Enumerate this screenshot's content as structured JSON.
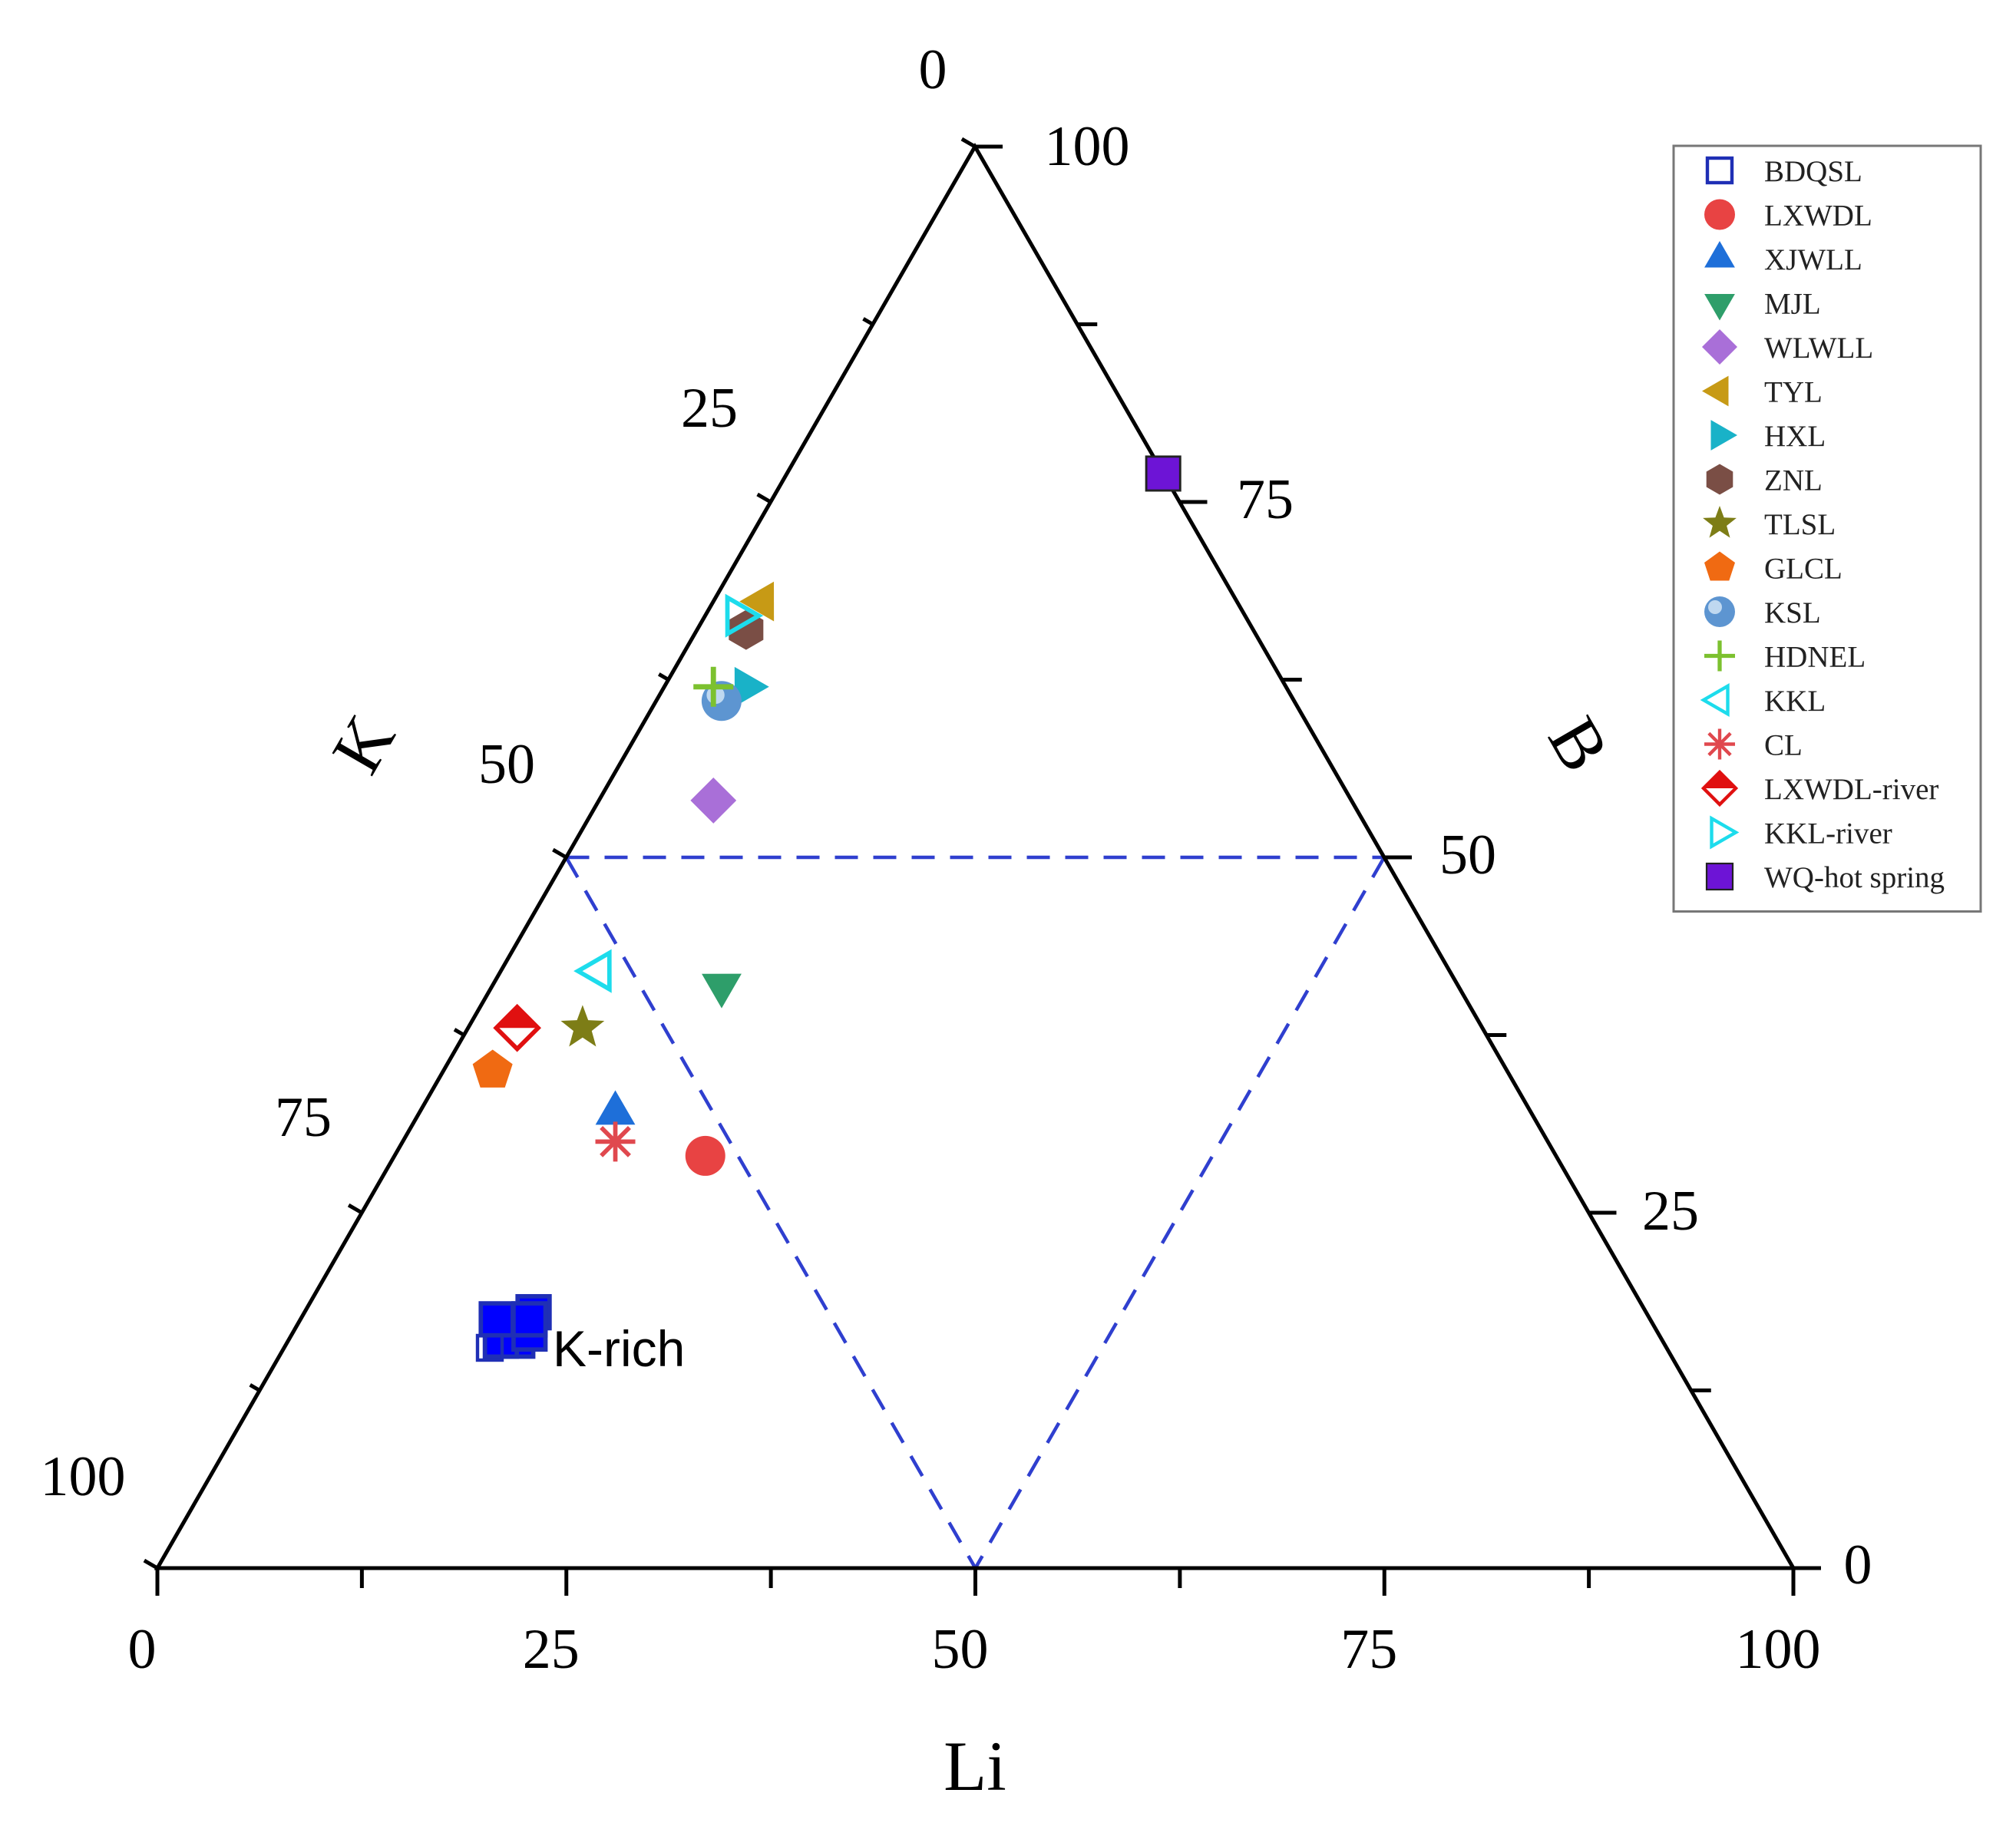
{
  "chart_data": {
    "type": "scatter",
    "subtype": "ternary",
    "axes": {
      "left": {
        "label": "K",
        "ticks": [
          "25",
          "50",
          "75",
          "100"
        ]
      },
      "right": {
        "label": "B",
        "ticks": [
          "75",
          "50",
          "25",
          "0"
        ]
      },
      "bottom": {
        "label": "Li",
        "ticks": [
          "0",
          "25",
          "50",
          "75",
          "100"
        ]
      },
      "apex_label": "0",
      "apex_value": "100"
    },
    "range": [
      0,
      100
    ],
    "grid": false,
    "legend_position": "top-right",
    "guide_lines": [
      {
        "from": {
          "K": 50,
          "B": 50,
          "Li": 0
        },
        "to": {
          "K": 0,
          "B": 50,
          "Li": 50
        }
      },
      {
        "from": {
          "K": 50,
          "B": 50,
          "Li": 0
        },
        "to": {
          "K": 50,
          "B": 0,
          "Li": 50
        }
      },
      {
        "from": {
          "K": 0,
          "B": 50,
          "Li": 50
        },
        "to": {
          "K": 50,
          "B": 0,
          "Li": 50
        }
      }
    ],
    "annotation": {
      "text": "K-rich",
      "marker": "square-open",
      "color": "#1f2fb5"
    },
    "series": [
      {
        "name": "BDQSL",
        "marker": "square-open",
        "color": "#1f2fb5",
        "fill": "#0000ff",
        "points": [
          {
            "K": 70,
            "B": 16,
            "Li": 14
          },
          {
            "K": 69,
            "B": 17,
            "Li": 14
          },
          {
            "K": 70,
            "B": 17,
            "Li": 13
          },
          {
            "K": 71,
            "B": 16,
            "Li": 13
          },
          {
            "K": 68,
            "B": 18,
            "Li": 14
          },
          {
            "K": 69,
            "B": 16.5,
            "Li": 14.5
          },
          {
            "K": 70.5,
            "B": 17.5,
            "Li": 12
          },
          {
            "K": 68.5,
            "B": 17.5,
            "Li": 14
          }
        ]
      },
      {
        "name": "LXWDL",
        "marker": "circle",
        "color": "#e84343",
        "points": [
          {
            "K": 52,
            "B": 29,
            "Li": 19
          }
        ]
      },
      {
        "name": "XJWLL",
        "marker": "triangle-up",
        "color": "#1e6fd9",
        "points": [
          {
            "K": 56,
            "B": 32,
            "Li": 12
          }
        ]
      },
      {
        "name": "MJL",
        "marker": "triangle-down",
        "color": "#2e9e6a",
        "points": [
          {
            "K": 45,
            "B": 41,
            "Li": 14
          }
        ]
      },
      {
        "name": "WLWLL",
        "marker": "diamond",
        "color": "#a96fd8",
        "points": [
          {
            "K": 39,
            "B": 54,
            "Li": 7
          }
        ]
      },
      {
        "name": "TYL",
        "marker": "triangle-left",
        "color": "#c79a15",
        "points": [
          {
            "K": 29,
            "B": 68,
            "Li": 3
          }
        ]
      },
      {
        "name": "HXL",
        "marker": "triangle-right",
        "color": "#19b2c8",
        "points": [
          {
            "K": 33,
            "B": 62,
            "Li": 5
          }
        ]
      },
      {
        "name": "ZNL",
        "marker": "hexagon",
        "color": "#7a4e45",
        "points": [
          {
            "K": 31,
            "B": 66,
            "Li": 3
          }
        ]
      },
      {
        "name": "TLSL",
        "marker": "star",
        "color": "#7d7d16",
        "points": [
          {
            "K": 55,
            "B": 38,
            "Li": 7
          }
        ]
      },
      {
        "name": "GLCL",
        "marker": "pentagon",
        "color": "#f06a12",
        "points": [
          {
            "K": 62,
            "B": 35,
            "Li": 3
          }
        ]
      },
      {
        "name": "KSL",
        "marker": "sphere",
        "color": "#5d95d1",
        "points": [
          {
            "K": 35,
            "B": 61,
            "Li": 4
          }
        ]
      },
      {
        "name": "HDNEL",
        "marker": "plus",
        "color": "#7cc12f",
        "points": [
          {
            "K": 35,
            "B": 62,
            "Li": 3
          }
        ]
      },
      {
        "name": "KKL",
        "marker": "triangle-left-open",
        "color": "#1ddcec",
        "points": [
          {
            "K": 52,
            "B": 42,
            "Li": 6
          }
        ]
      },
      {
        "name": "CL",
        "marker": "asterisk",
        "color": "#e0484e",
        "points": [
          {
            "K": 57,
            "B": 30,
            "Li": 13
          }
        ]
      },
      {
        "name": "LXWDL-river",
        "marker": "diamond-half",
        "color": "#e01010",
        "points": [
          {
            "K": 59,
            "B": 38,
            "Li": 3
          }
        ]
      },
      {
        "name": "KKL-river",
        "marker": "triangle-right-open",
        "color": "#1ddcec",
        "points": [
          {
            "K": 31,
            "B": 67,
            "Li": 2
          }
        ]
      },
      {
        "name": "WQ-hot spring",
        "marker": "square",
        "color": "#6d14d6",
        "points": [
          {
            "K": 0,
            "B": 77,
            "Li": 23
          }
        ]
      }
    ]
  }
}
